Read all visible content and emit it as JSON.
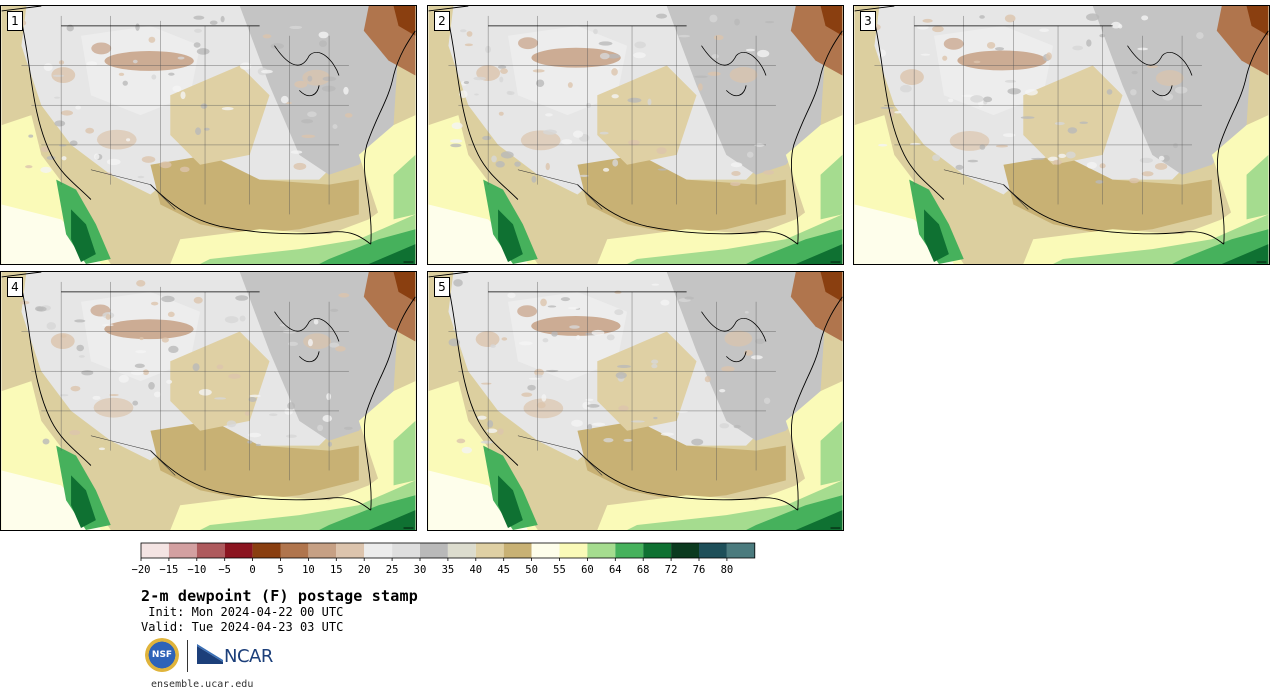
{
  "title": "2-m dewpoint (F) postage stamp",
  "init_text": " Init: Mon 2024-04-22 00 UTC",
  "valid_text": "Valid: Tue 2024-04-23 03 UTC",
  "site": "ensemble.ucar.edu",
  "logos": {
    "nsf": "NSF",
    "ncar": "NCAR"
  },
  "stamps": [
    {
      "label": "1"
    },
    {
      "label": "2"
    },
    {
      "label": "3"
    },
    {
      "label": "4"
    },
    {
      "label": "5"
    }
  ],
  "colorbar": {
    "tick_labels": [
      "−20",
      "−15",
      "−10",
      "−5",
      "0",
      "5",
      "10",
      "15",
      "20",
      "25",
      "30",
      "35",
      "40",
      "45",
      "50",
      "55",
      "60",
      "64",
      "68",
      "72",
      "76",
      "80"
    ],
    "colors": [
      "#f4e4e3",
      "#d3a0a1",
      "#ae5a5d",
      "#8b1520",
      "#8a3f10",
      "#b0754d",
      "#c6a084",
      "#dcc4ad",
      "#ececec",
      "#dedede",
      "#b9b9b9",
      "#dcdcce",
      "#dfd0a4",
      "#c8b174",
      "#fefeeb",
      "#fafab8",
      "#a5dc8f",
      "#46b15c",
      "#0f7132",
      "#0b3a1f",
      "#1e4f59",
      "#4b7b7e"
    ]
  }
}
